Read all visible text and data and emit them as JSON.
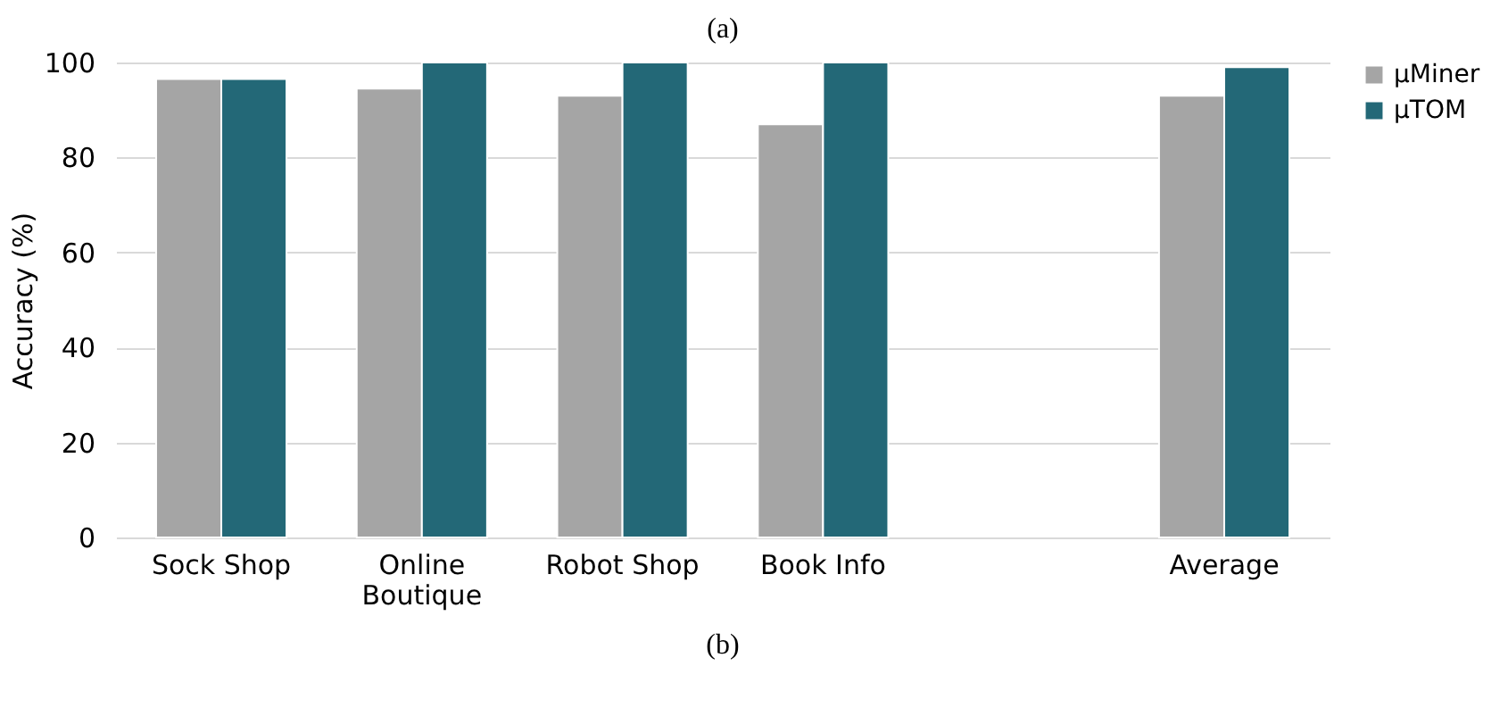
{
  "chart_data": {
    "type": "bar",
    "title": "(a)",
    "ylabel": "Accuracy (%)",
    "categories": [
      "Sock Shop",
      "Online Boutique",
      "Robot Shop",
      "Book Info",
      null,
      "Average"
    ],
    "series": [
      {
        "name": "µMiner",
        "color": "#a5a5a5",
        "values": [
          96.5,
          94.5,
          93,
          87,
          null,
          93
        ]
      },
      {
        "name": "µTOM",
        "color": "#236877",
        "values": [
          96.5,
          100,
          100,
          100,
          null,
          99
        ]
      }
    ],
    "ylim": [
      0,
      100
    ],
    "yticks": [
      0,
      20,
      40,
      60,
      80,
      100
    ],
    "grid": "y",
    "legend": "right",
    "annotations": [
      "(b)"
    ]
  }
}
